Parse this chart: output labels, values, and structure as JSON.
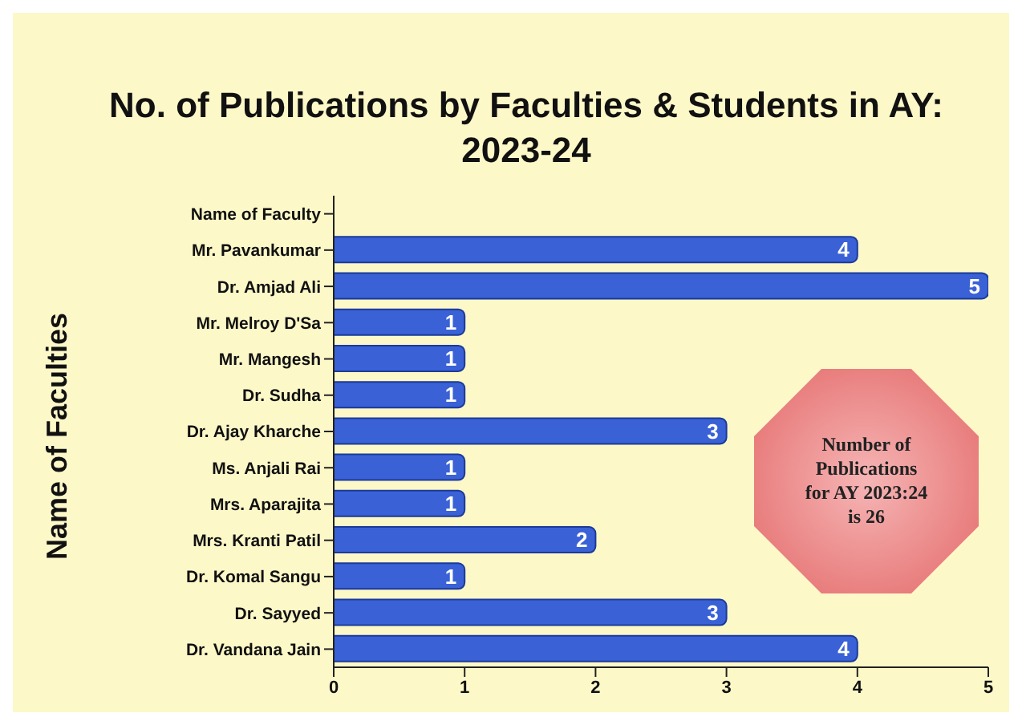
{
  "chart_data": {
    "type": "bar",
    "orientation": "horizontal",
    "title": "No. of Publications by Faculties & Students in AY: 2023-24",
    "ylabel": "Name of Faculties",
    "categories": [
      "Name of Faculty",
      "Mr. Pavankumar",
      "Dr. Amjad Ali",
      "Mr. Melroy D'Sa",
      "Mr. Mangesh",
      "Dr. Sudha",
      "Dr. Ajay Kharche",
      "Ms. Anjali Rai",
      "Mrs. Aparajita",
      "Mrs. Kranti Patil",
      "Dr. Komal Sangu",
      "Dr. Sayyed",
      "Dr. Vandana Jain"
    ],
    "values": [
      null,
      4,
      5,
      1,
      1,
      1,
      3,
      1,
      1,
      2,
      1,
      3,
      4
    ],
    "color": "#3a62d6",
    "xlim": [
      0,
      5
    ],
    "xticks": [
      0,
      1,
      2,
      3,
      4,
      5
    ],
    "grid": false,
    "data_labels": true,
    "annotations": [
      "Number of Publications for AY 2023:24 is 26"
    ]
  }
}
